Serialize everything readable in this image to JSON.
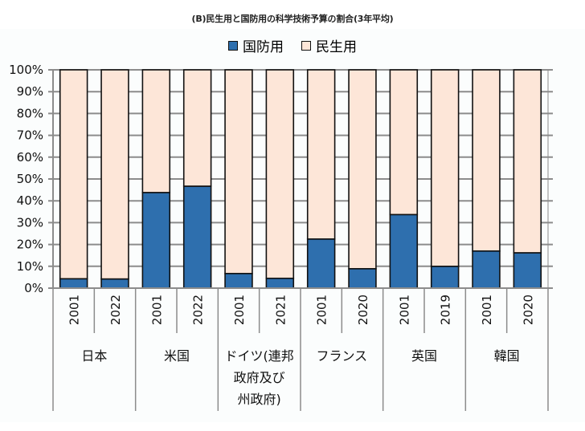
{
  "chart_data": {
    "type": "bar",
    "stacked": true,
    "percent_stacked": true,
    "title": "(B)民生用と国防用の科学技術予算の割合(3年平均)",
    "xlabel": "",
    "ylabel": "",
    "ylim": [
      0,
      100
    ],
    "yticks": [
      "0%",
      "10%",
      "20%",
      "30%",
      "40%",
      "50%",
      "60%",
      "70%",
      "80%",
      "90%",
      "100%"
    ],
    "grid": true,
    "legend_position": "top-center",
    "groups": [
      {
        "label": "日本",
        "label_lines": [
          "日本"
        ],
        "years": [
          "2001",
          "2022"
        ]
      },
      {
        "label": "米国",
        "label_lines": [
          "米国"
        ],
        "years": [
          "2001",
          "2022"
        ]
      },
      {
        "label": "ドイツ(連邦政府及び州政府)",
        "label_lines": [
          "ドイツ(連邦",
          "政府及び",
          "州政府)"
        ],
        "years": [
          "2001",
          "2021"
        ]
      },
      {
        "label": "フランス",
        "label_lines": [
          "フランス"
        ],
        "years": [
          "2001",
          "2020"
        ]
      },
      {
        "label": "英国",
        "label_lines": [
          "英国"
        ],
        "years": [
          "2001",
          "2019"
        ]
      },
      {
        "label": "韓国",
        "label_lines": [
          "韓国"
        ],
        "years": [
          "2001",
          "2020"
        ]
      }
    ],
    "categories": [
      "日本 2001",
      "日本 2022",
      "米国 2001",
      "米国 2022",
      "ドイツ 2001",
      "ドイツ 2021",
      "フランス 2001",
      "フランス 2020",
      "英国 2001",
      "英国 2019",
      "韓国 2001",
      "韓国 2020"
    ],
    "series": [
      {
        "name": "国防用",
        "color": "#2e6fae",
        "values": [
          4.3,
          4.2,
          43.8,
          46.7,
          6.7,
          4.5,
          22.5,
          8.9,
          33.7,
          10.0,
          17.0,
          16.2
        ]
      },
      {
        "name": "民生用",
        "color": "#fde6d8",
        "values": [
          95.7,
          95.8,
          56.2,
          53.3,
          93.3,
          95.5,
          77.5,
          91.1,
          66.3,
          90.0,
          83.0,
          83.8
        ]
      }
    ]
  },
  "colors": {
    "gridline": "#8c8c8c",
    "bar_border": "#111111"
  }
}
